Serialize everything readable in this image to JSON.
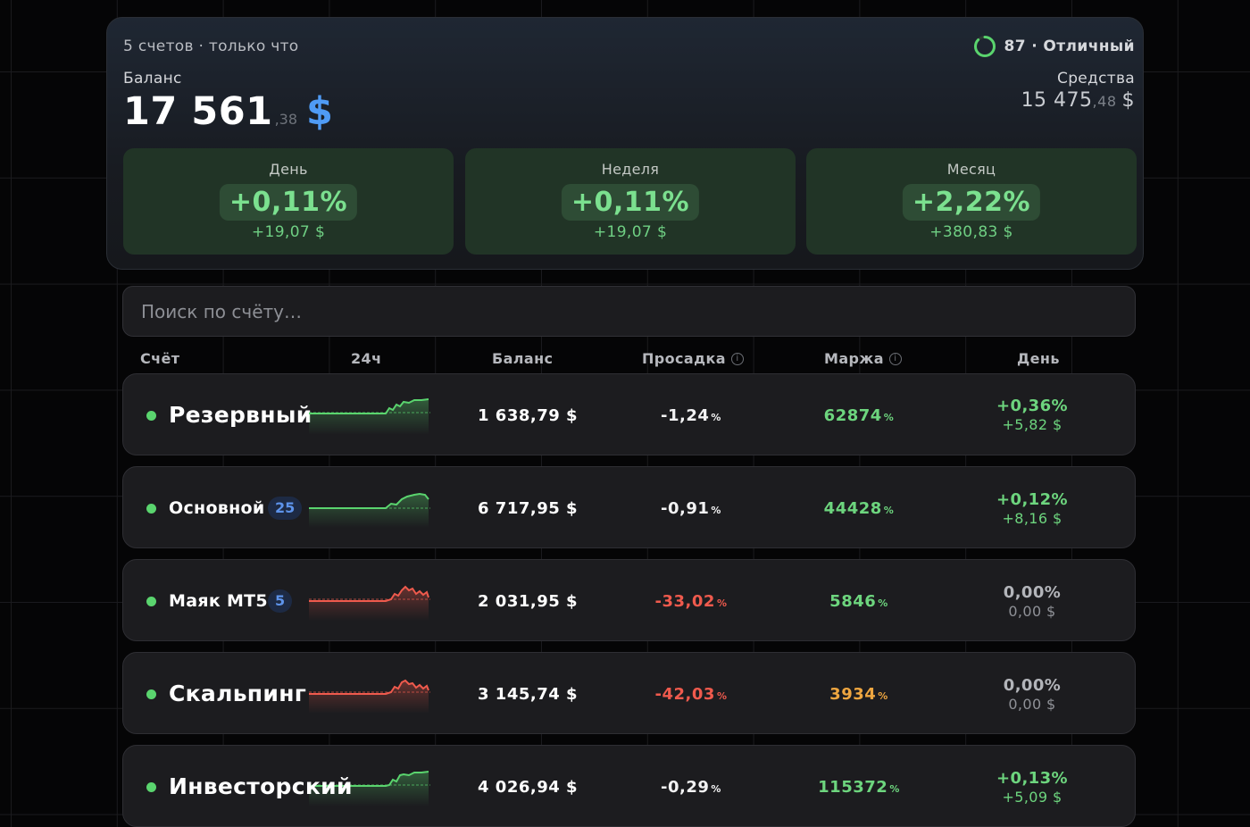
{
  "summary": {
    "meta": "5 счетов · только что",
    "score": "87 · Отличный",
    "balance_label": "Баланс",
    "balance_int": "17 561",
    "balance_frac": ",38",
    "balance_currency": "$",
    "funds_label": "Средства",
    "funds_int": "15 475",
    "funds_frac": ",48",
    "funds_currency": "$",
    "periods": [
      {
        "label": "День",
        "percent": "+0,11%",
        "amount": "+19,07 $"
      },
      {
        "label": "Неделя",
        "percent": "+0,11%",
        "amount": "+19,07 $"
      },
      {
        "label": "Месяц",
        "percent": "+2,22%",
        "amount": "+380,83 $"
      }
    ]
  },
  "search": {
    "placeholder": "Поиск по счёту…"
  },
  "columns": {
    "account": "Счёт",
    "h24": "24ч",
    "balance": "Баланс",
    "drawdown": "Просадка",
    "margin": "Маржа",
    "day": "День"
  },
  "accounts": [
    {
      "name": "Резервный",
      "badge": "",
      "trend": "up",
      "balance": "1 638,79 $",
      "drawdown": "-1,24",
      "margin": "62874",
      "day_pct": "+0,36%",
      "day_amt": "+5,82 $"
    },
    {
      "name": "Основной",
      "badge": "25",
      "trend": "up",
      "balance": "6 717,95 $",
      "drawdown": "-0,91",
      "margin": "44428",
      "day_pct": "+0,12%",
      "day_amt": "+8,16 $"
    },
    {
      "name": "Маяк MT5",
      "badge": "5",
      "trend": "down",
      "balance": "2 031,95 $",
      "drawdown": "-33,02",
      "margin": "5846",
      "day_pct": "0,00%",
      "day_amt": "0,00 $"
    },
    {
      "name": "Скальпинг",
      "badge": "",
      "trend": "down",
      "balance": "3 145,74 $",
      "drawdown": "-42,03",
      "margin": "3934",
      "day_pct": "0,00%",
      "day_amt": "0,00 $"
    },
    {
      "name": "Инвесторский",
      "badge": "",
      "trend": "up",
      "balance": "4 026,94 $",
      "drawdown": "-0,29",
      "margin": "115372",
      "day_pct": "+0,13%",
      "day_amt": "+5,09 $"
    }
  ],
  "percent_sign": "%",
  "info_icon": "i",
  "colors": {
    "positive": "#6dd57e",
    "negative": "#ef5a4d",
    "warning": "#eea640",
    "accent": "#4f9bf5"
  }
}
